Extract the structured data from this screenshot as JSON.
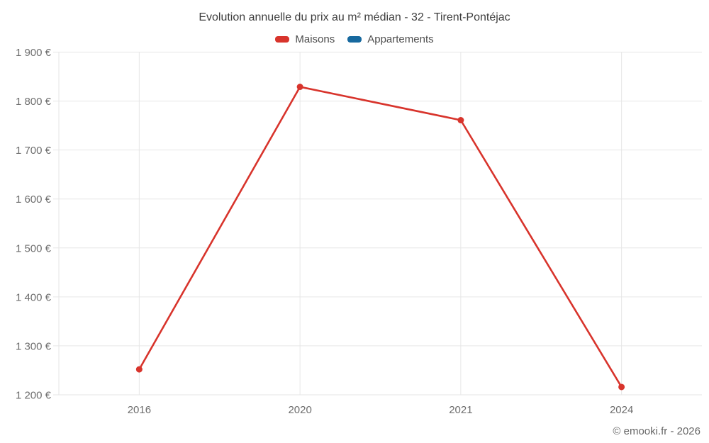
{
  "chart": {
    "title": "Evolution annuelle du prix au m² médian - 32 - Tirent-Pontéjac",
    "copyright": "© emooki.fr - 2026"
  },
  "chart_data": {
    "type": "line",
    "title": "Evolution annuelle du prix au m² médian - 32 - Tirent-Pontéjac",
    "categories": [
      "2016",
      "2020",
      "2021",
      "2024"
    ],
    "series": [
      {
        "name": "Maisons",
        "color": "#d8342c",
        "values": [
          1252,
          1829,
          1761,
          1216
        ]
      },
      {
        "name": "Appartements",
        "color": "#17699f",
        "values": []
      }
    ],
    "ylim": [
      1200,
      1900
    ],
    "y_tick_step": 100,
    "y_ticks": [
      {
        "value": 1200,
        "label": "1 200 €"
      },
      {
        "value": 1300,
        "label": "1 300 €"
      },
      {
        "value": 1400,
        "label": "1 400 €"
      },
      {
        "value": 1500,
        "label": "1 500 €"
      },
      {
        "value": 1600,
        "label": "1 600 €"
      },
      {
        "value": 1700,
        "label": "1 700 €"
      },
      {
        "value": 1800,
        "label": "1 800 €"
      },
      {
        "value": 1900,
        "label": "1 900 €"
      }
    ],
    "grid": true,
    "legend_position": "top",
    "axis_color": "#e6e6e6",
    "tick_label_color": "#6e6e6e"
  }
}
